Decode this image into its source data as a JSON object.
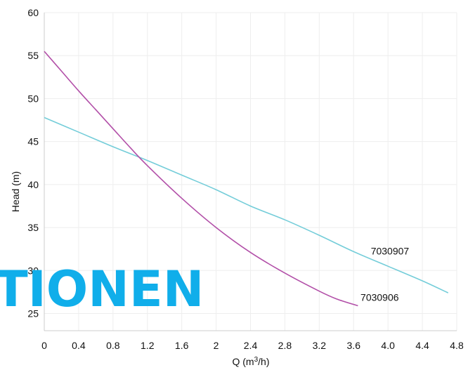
{
  "chart_data": {
    "type": "line",
    "xlabel": "Q (m³/h)",
    "ylabel": "Head (m)",
    "xlim": [
      0,
      4.8
    ],
    "ylim": [
      23,
      60
    ],
    "x_ticks": [
      0,
      0.4,
      0.8,
      1.2,
      1.6,
      2,
      2.4,
      2.8,
      3.2,
      3.6,
      4.0,
      4.4,
      4.8
    ],
    "x_tick_labels": [
      "0",
      "0.4",
      "0.8",
      "1.2",
      "1.6",
      "2",
      "2.4",
      "2.8",
      "3.2",
      "3.6",
      "4.0",
      "4.4",
      "4.8"
    ],
    "y_ticks": [
      25,
      30,
      35,
      40,
      45,
      50,
      55,
      60
    ],
    "y_tick_labels": [
      "25",
      "30",
      "35",
      "40",
      "45",
      "50",
      "55",
      "60"
    ],
    "grid": true,
    "series": [
      {
        "name": "7030907",
        "color": "#74CDD9",
        "x": [
          0,
          0.4,
          0.8,
          1.2,
          1.6,
          2.0,
          2.4,
          2.8,
          3.2,
          3.6,
          4.0,
          4.4,
          4.7
        ],
        "y": [
          47.8,
          46.1,
          44.4,
          42.8,
          41.1,
          39.4,
          37.5,
          35.9,
          34.1,
          32.2,
          30.5,
          28.8,
          27.4
        ]
      },
      {
        "name": "7030906",
        "color": "#B24FA8",
        "x": [
          0,
          0.2,
          0.4,
          0.6,
          0.8,
          1.0,
          1.2,
          1.6,
          2.0,
          2.4,
          2.8,
          3.2,
          3.4,
          3.65
        ],
        "y": [
          55.5,
          53.2,
          50.9,
          48.7,
          46.5,
          44.3,
          42.2,
          38.4,
          35.0,
          32.1,
          29.7,
          27.6,
          26.7,
          25.9
        ]
      }
    ]
  },
  "watermark_text": "TIONEN",
  "colors": {
    "grid": "#EEEEEE",
    "axis": "#111111",
    "watermark": "#10AEEA"
  }
}
